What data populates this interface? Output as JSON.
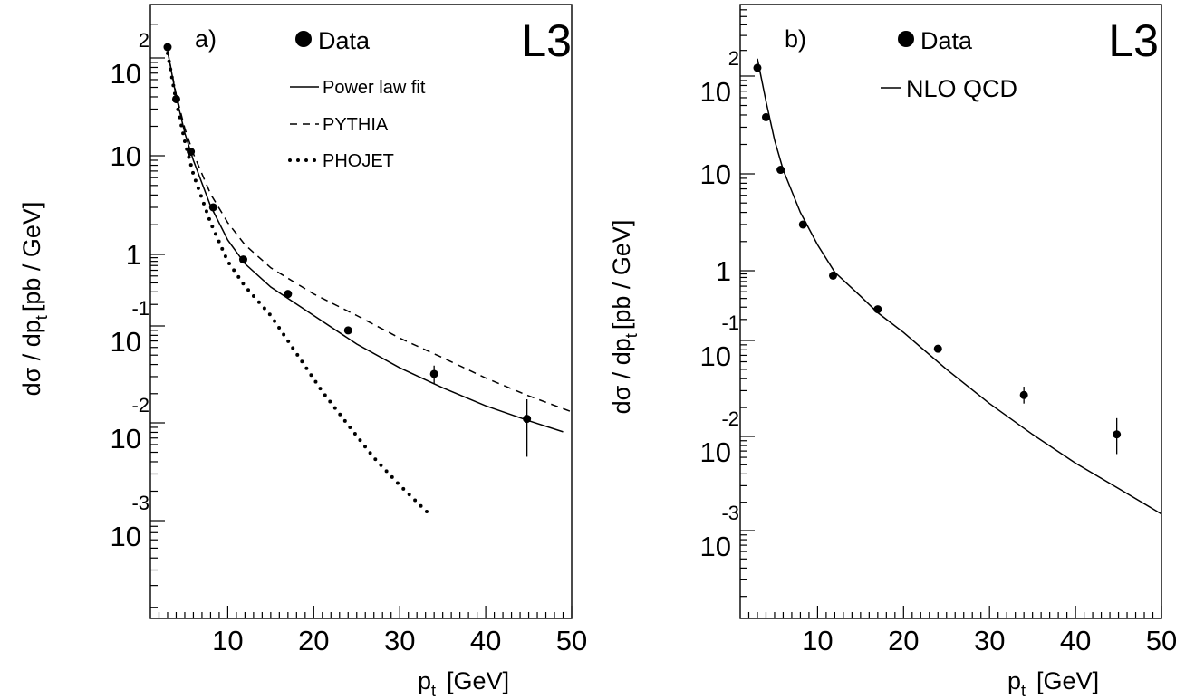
{
  "chart_data": [
    {
      "type": "scatter",
      "panel_label": "a)",
      "experiment": "L3",
      "xlabel": "p",
      "xlabel_sub": "t",
      "xlabel_unit": "[GeV]",
      "ylabel": "dσ / dp",
      "ylabel_sub": "t",
      "ylabel_unit": "[pb / GeV]",
      "xlim": [
        1,
        50
      ],
      "ylim": [
        0.0001,
        300
      ],
      "yscale": "log",
      "x_ticks": [
        "10",
        "20",
        "30",
        "40",
        "50"
      ],
      "y_ticks": [
        {
          "mant": "10",
          "exp": "-3"
        },
        {
          "mant": "10",
          "exp": "-2"
        },
        {
          "mant": "10",
          "exp": "-1"
        },
        {
          "mant": "1",
          "exp": ""
        },
        {
          "mant": "10",
          "exp": ""
        },
        {
          "mant": "10",
          "exp": "2"
        }
      ],
      "legend_placement": "top-center",
      "series": [
        {
          "name": "Data",
          "style": "points",
          "x": [
            3,
            4,
            5.7,
            8.3,
            11.8,
            17,
            24,
            34,
            44.8
          ],
          "y": [
            125,
            38,
            11,
            3,
            0.85,
            0.28,
            0.09,
            0.032,
            0.011
          ],
          "yerr_low": [
            0,
            0,
            0,
            0,
            0,
            0,
            0,
            0.007,
            0.0065
          ],
          "yerr_high": [
            0,
            0,
            0,
            0,
            0,
            0,
            0,
            0.007,
            0.0065
          ]
        },
        {
          "name": "Power law fit",
          "style": "solid",
          "x": [
            3,
            4,
            5,
            6,
            8,
            10,
            12,
            15,
            20,
            25,
            30,
            35,
            40,
            45,
            49
          ],
          "y": [
            115,
            40,
            17,
            9,
            3.1,
            1.4,
            0.74,
            0.35,
            0.14,
            0.065,
            0.037,
            0.023,
            0.015,
            0.0105,
            0.0081
          ]
        },
        {
          "name": "PYTHIA",
          "style": "dashed",
          "x": [
            3,
            4,
            5,
            6,
            8,
            10,
            12,
            15,
            20,
            25,
            30,
            35,
            40,
            45,
            50
          ],
          "y": [
            115,
            42,
            19,
            10.5,
            4.1,
            2.1,
            1.25,
            0.65,
            0.28,
            0.14,
            0.075,
            0.047,
            0.029,
            0.019,
            0.013
          ]
        },
        {
          "name": "PHOJET",
          "style": "dotted",
          "x": [
            3,
            4,
            5,
            6,
            8,
            10,
            12,
            15,
            18,
            21,
            24,
            27,
            30,
            33.5
          ],
          "y": [
            110,
            36,
            14,
            6.5,
            2.1,
            0.8,
            0.36,
            0.14,
            0.052,
            0.021,
            0.0095,
            0.0044,
            0.0023,
            0.00115
          ]
        }
      ]
    },
    {
      "type": "scatter",
      "panel_label": "b)",
      "experiment": "L3",
      "xlabel": "p",
      "xlabel_sub": "t",
      "xlabel_unit": "[GeV]",
      "ylabel": "dσ / dp",
      "ylabel_sub": "t",
      "ylabel_unit": "[pb / GeV]",
      "xlim": [
        1,
        50
      ],
      "ylim": [
        0.0001,
        700
      ],
      "yscale": "log",
      "x_ticks": [
        "10",
        "20",
        "30",
        "40",
        "50"
      ],
      "y_ticks": [
        {
          "mant": "10",
          "exp": "-3"
        },
        {
          "mant": "10",
          "exp": "-2"
        },
        {
          "mant": "10",
          "exp": "-1"
        },
        {
          "mant": "1",
          "exp": ""
        },
        {
          "mant": "10",
          "exp": ""
        },
        {
          "mant": "10",
          "exp": "2"
        }
      ],
      "legend_placement": "top-center",
      "series": [
        {
          "name": "Data",
          "style": "points",
          "x": [
            3,
            4,
            5.7,
            8.3,
            11.8,
            17,
            24,
            34,
            44.8
          ],
          "y": [
            125,
            38,
            11,
            3,
            0.85,
            0.28,
            0.082,
            0.027,
            0.0105
          ],
          "yerr_low": [
            0,
            0,
            0,
            0,
            0,
            0,
            0,
            0.005,
            0.004
          ],
          "yerr_high": [
            0,
            0,
            0,
            0,
            0,
            0,
            0,
            0.006,
            0.005
          ]
        },
        {
          "name": "NLO QCD",
          "style": "solid",
          "x": [
            3,
            4,
            5,
            6,
            8,
            10,
            12,
            15,
            17,
            20,
            25,
            30,
            35,
            40,
            45,
            50
          ],
          "y": [
            160,
            55,
            22,
            11,
            4,
            1.85,
            0.95,
            0.43,
            0.25,
            0.13,
            0.05,
            0.022,
            0.0105,
            0.0052,
            0.0028,
            0.0015
          ]
        }
      ]
    }
  ]
}
